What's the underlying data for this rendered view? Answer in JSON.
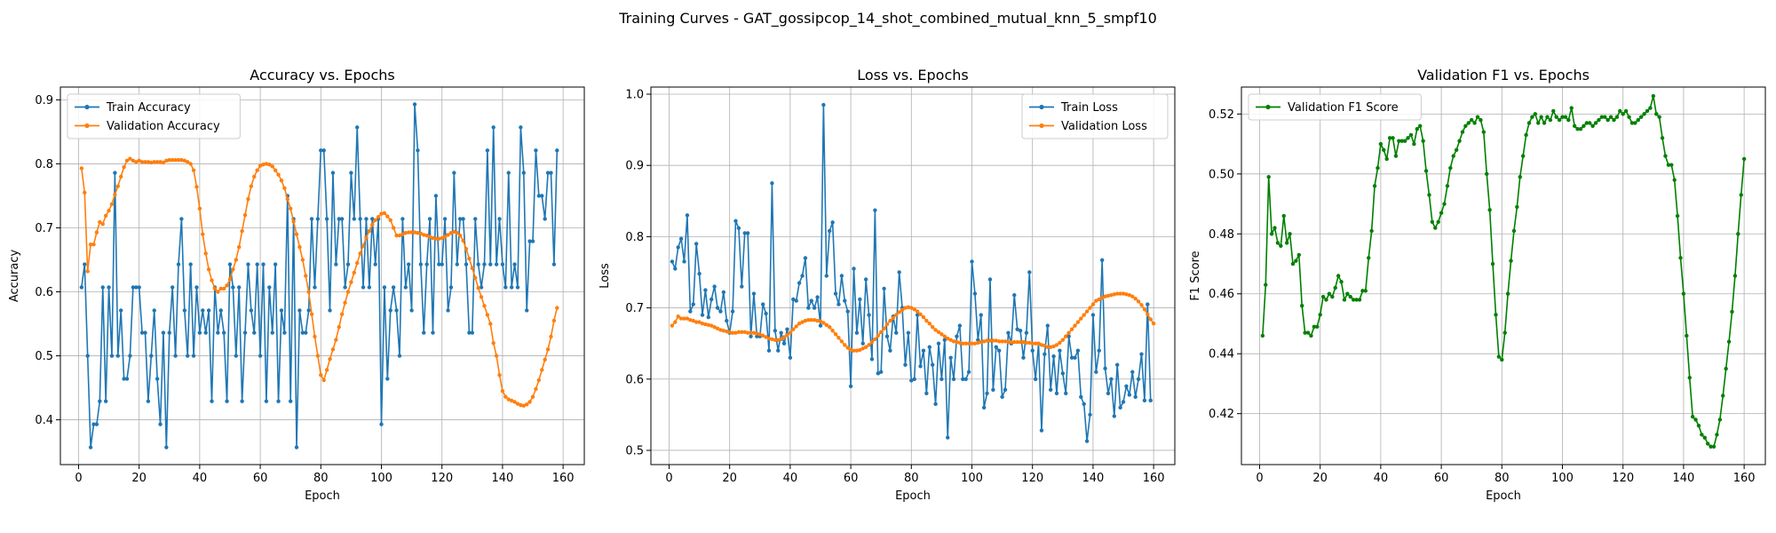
{
  "figure": {
    "suptitle": "Training Curves - GAT_gossipcop_14_shot_combined_mutual_knn_5_smpf10"
  },
  "chart_data": [
    {
      "type": "line",
      "title": "Accuracy vs. Epochs",
      "xlabel": "Epoch",
      "ylabel": "Accuracy",
      "xlim": [
        -6,
        167
      ],
      "ylim": [
        0.33,
        0.92
      ],
      "xticks": [
        0,
        20,
        40,
        60,
        80,
        100,
        120,
        140,
        160
      ],
      "yticks": [
        0.4,
        0.5,
        0.6,
        0.7,
        0.8,
        0.9
      ],
      "ytick_labels": [
        "0.4",
        "0.5",
        "0.6",
        "0.7",
        "0.8",
        "0.9"
      ],
      "grid": true,
      "legend": "upper-left",
      "series": [
        {
          "name": "Train Accuracy",
          "color": "#1f77b4",
          "x_start": 1,
          "values": [
            0.607,
            0.643,
            0.5,
            0.357,
            0.393,
            0.393,
            0.429,
            0.607,
            0.429,
            0.607,
            0.5,
            0.786,
            0.5,
            0.571,
            0.464,
            0.464,
            0.5,
            0.607,
            0.607,
            0.607,
            0.536,
            0.536,
            0.429,
            0.5,
            0.571,
            0.464,
            0.393,
            0.536,
            0.357,
            0.536,
            0.607,
            0.5,
            0.643,
            0.714,
            0.571,
            0.5,
            0.643,
            0.5,
            0.607,
            0.536,
            0.571,
            0.536,
            0.571,
            0.429,
            0.607,
            0.536,
            0.571,
            0.536,
            0.429,
            0.643,
            0.607,
            0.5,
            0.607,
            0.429,
            0.536,
            0.643,
            0.571,
            0.536,
            0.643,
            0.5,
            0.643,
            0.429,
            0.607,
            0.536,
            0.643,
            0.429,
            0.571,
            0.536,
            0.75,
            0.429,
            0.714,
            0.357,
            0.571,
            0.536,
            0.536,
            0.571,
            0.714,
            0.607,
            0.714,
            0.821,
            0.821,
            0.714,
            0.571,
            0.786,
            0.643,
            0.714,
            0.714,
            0.607,
            0.643,
            0.786,
            0.714,
            0.857,
            0.714,
            0.607,
            0.714,
            0.607,
            0.714,
            0.643,
            0.714,
            0.393,
            0.607,
            0.464,
            0.571,
            0.607,
            0.571,
            0.5,
            0.714,
            0.607,
            0.643,
            0.571,
            0.893,
            0.821,
            0.643,
            0.536,
            0.643,
            0.714,
            0.536,
            0.75,
            0.643,
            0.643,
            0.714,
            0.571,
            0.607,
            0.786,
            0.643,
            0.714,
            0.714,
            0.643,
            0.536,
            0.536,
            0.714,
            0.643,
            0.607,
            0.643,
            0.821,
            0.643,
            0.857,
            0.643,
            0.714,
            0.643,
            0.607,
            0.786,
            0.607,
            0.643,
            0.607,
            0.857,
            0.786,
            0.571,
            0.679,
            0.679,
            0.821,
            0.75,
            0.75,
            0.714,
            0.786,
            0.786,
            0.643,
            0.821
          ]
        },
        {
          "name": "Validation Accuracy",
          "color": "#ff7f0e",
          "x_start": 1,
          "values": [
            0.793,
            0.755,
            0.632,
            0.674,
            0.674,
            0.693,
            0.709,
            0.706,
            0.719,
            0.727,
            0.737,
            0.752,
            0.765,
            0.78,
            0.795,
            0.805,
            0.808,
            0.805,
            0.803,
            0.805,
            0.803,
            0.803,
            0.803,
            0.802,
            0.803,
            0.803,
            0.803,
            0.802,
            0.805,
            0.806,
            0.806,
            0.806,
            0.806,
            0.806,
            0.805,
            0.803,
            0.8,
            0.79,
            0.764,
            0.73,
            0.69,
            0.66,
            0.635,
            0.618,
            0.605,
            0.6,
            0.605,
            0.605,
            0.61,
            0.62,
            0.635,
            0.65,
            0.67,
            0.695,
            0.72,
            0.745,
            0.765,
            0.78,
            0.79,
            0.797,
            0.799,
            0.8,
            0.799,
            0.796,
            0.79,
            0.783,
            0.774,
            0.762,
            0.745,
            0.73,
            0.71,
            0.69,
            0.67,
            0.65,
            0.625,
            0.6,
            0.565,
            0.53,
            0.5,
            0.47,
            0.462,
            0.478,
            0.495,
            0.51,
            0.525,
            0.545,
            0.565,
            0.583,
            0.6,
            0.615,
            0.63,
            0.645,
            0.66,
            0.672,
            0.685,
            0.695,
            0.705,
            0.712,
            0.717,
            0.722,
            0.723,
            0.718,
            0.712,
            0.7,
            0.688,
            0.688,
            0.69,
            0.692,
            0.693,
            0.693,
            0.693,
            0.692,
            0.691,
            0.689,
            0.688,
            0.686,
            0.684,
            0.683,
            0.683,
            0.684,
            0.686,
            0.689,
            0.692,
            0.694,
            0.692,
            0.688,
            0.68,
            0.667,
            0.652,
            0.637,
            0.622,
            0.606,
            0.592,
            0.578,
            0.564,
            0.55,
            0.52,
            0.5,
            0.47,
            0.445,
            0.436,
            0.432,
            0.43,
            0.428,
            0.425,
            0.423,
            0.422,
            0.424,
            0.428,
            0.436,
            0.448,
            0.462,
            0.478,
            0.494,
            0.51,
            0.53,
            0.555,
            0.575
          ]
        }
      ]
    },
    {
      "type": "line",
      "title": "Loss vs. Epochs",
      "xlabel": "Epoch",
      "ylabel": "Loss",
      "xlim": [
        -6,
        167
      ],
      "ylim": [
        0.48,
        1.01
      ],
      "xticks": [
        0,
        20,
        40,
        60,
        80,
        100,
        120,
        140,
        160
      ],
      "yticks": [
        0.5,
        0.6,
        0.7,
        0.8,
        0.9,
        1.0
      ],
      "ytick_labels": [
        "0.5",
        "0.6",
        "0.7",
        "0.8",
        "0.9",
        "1.0"
      ],
      "grid": true,
      "legend": "upper-right",
      "series": [
        {
          "name": "Train Loss",
          "color": "#1f77b4",
          "x_start": 1,
          "values": [
            0.765,
            0.755,
            0.785,
            0.797,
            0.765,
            0.83,
            0.695,
            0.705,
            0.79,
            0.748,
            0.69,
            0.725,
            0.687,
            0.712,
            0.73,
            0.7,
            0.695,
            0.722,
            0.682,
            0.665,
            0.695,
            0.822,
            0.812,
            0.73,
            0.805,
            0.805,
            0.66,
            0.72,
            0.66,
            0.66,
            0.705,
            0.692,
            0.64,
            0.875,
            0.668,
            0.64,
            0.665,
            0.65,
            0.67,
            0.63,
            0.712,
            0.71,
            0.735,
            0.745,
            0.77,
            0.7,
            0.71,
            0.7,
            0.715,
            0.675,
            0.985,
            0.745,
            0.808,
            0.82,
            0.72,
            0.705,
            0.745,
            0.71,
            0.695,
            0.59,
            0.755,
            0.665,
            0.712,
            0.65,
            0.74,
            0.69,
            0.628,
            0.837,
            0.608,
            0.61,
            0.727,
            0.66,
            0.64,
            0.688,
            0.665,
            0.75,
            0.7,
            0.62,
            0.665,
            0.598,
            0.6,
            0.69,
            0.618,
            0.64,
            0.58,
            0.645,
            0.62,
            0.565,
            0.65,
            0.6,
            0.655,
            0.518,
            0.63,
            0.6,
            0.66,
            0.675,
            0.6,
            0.6,
            0.61,
            0.765,
            0.72,
            0.655,
            0.69,
            0.56,
            0.58,
            0.74,
            0.585,
            0.645,
            0.64,
            0.575,
            0.585,
            0.665,
            0.65,
            0.718,
            0.67,
            0.668,
            0.63,
            0.665,
            0.75,
            0.64,
            0.6,
            0.65,
            0.528,
            0.635,
            0.675,
            0.585,
            0.632,
            0.58,
            0.64,
            0.608,
            0.58,
            0.66,
            0.63,
            0.63,
            0.64,
            0.575,
            0.565,
            0.513,
            0.55,
            0.69,
            0.61,
            0.64,
            0.767,
            0.615,
            0.58,
            0.6,
            0.548,
            0.62,
            0.56,
            0.568,
            0.59,
            0.578,
            0.61,
            0.575,
            0.6,
            0.635,
            0.57,
            0.705,
            0.57
          ]
        },
        {
          "name": "Validation Loss",
          "color": "#ff7f0e",
          "x_start": 1,
          "values": [
            0.675,
            0.68,
            0.688,
            0.685,
            0.685,
            0.685,
            0.683,
            0.682,
            0.68,
            0.68,
            0.678,
            0.677,
            0.676,
            0.675,
            0.673,
            0.671,
            0.669,
            0.668,
            0.667,
            0.666,
            0.665,
            0.665,
            0.666,
            0.666,
            0.666,
            0.665,
            0.665,
            0.665,
            0.664,
            0.663,
            0.661,
            0.659,
            0.657,
            0.656,
            0.655,
            0.655,
            0.656,
            0.659,
            0.662,
            0.665,
            0.67,
            0.674,
            0.678,
            0.68,
            0.682,
            0.683,
            0.683,
            0.683,
            0.682,
            0.681,
            0.679,
            0.676,
            0.673,
            0.668,
            0.663,
            0.658,
            0.653,
            0.648,
            0.644,
            0.641,
            0.64,
            0.64,
            0.641,
            0.643,
            0.645,
            0.648,
            0.652,
            0.656,
            0.661,
            0.666,
            0.671,
            0.677,
            0.682,
            0.686,
            0.69,
            0.694,
            0.697,
            0.7,
            0.701,
            0.7,
            0.698,
            0.695,
            0.691,
            0.687,
            0.682,
            0.678,
            0.673,
            0.669,
            0.666,
            0.663,
            0.66,
            0.657,
            0.655,
            0.653,
            0.652,
            0.651,
            0.65,
            0.65,
            0.65,
            0.65,
            0.65,
            0.651,
            0.652,
            0.653,
            0.654,
            0.654,
            0.654,
            0.654,
            0.653,
            0.653,
            0.653,
            0.652,
            0.652,
            0.652,
            0.652,
            0.652,
            0.652,
            0.651,
            0.651,
            0.65,
            0.65,
            0.65,
            0.648,
            0.647,
            0.645,
            0.645,
            0.646,
            0.648,
            0.651,
            0.655,
            0.66,
            0.665,
            0.67,
            0.675,
            0.68,
            0.685,
            0.69,
            0.695,
            0.7,
            0.705,
            0.71,
            0.712,
            0.714,
            0.716,
            0.717,
            0.718,
            0.719,
            0.72,
            0.72,
            0.72,
            0.719,
            0.718,
            0.716,
            0.713,
            0.709,
            0.704,
            0.698,
            0.691,
            0.684,
            0.678
          ]
        }
      ]
    },
    {
      "type": "line",
      "title": "Validation F1 vs. Epochs",
      "xlabel": "Epoch",
      "ylabel": "F1 Score",
      "xlim": [
        -6,
        167
      ],
      "ylim": [
        0.403,
        0.529
      ],
      "xticks": [
        0,
        20,
        40,
        60,
        80,
        100,
        120,
        140,
        160
      ],
      "yticks": [
        0.42,
        0.44,
        0.46,
        0.48,
        0.5,
        0.52
      ],
      "ytick_labels": [
        "0.42",
        "0.44",
        "0.46",
        "0.48",
        "0.50",
        "0.52"
      ],
      "grid": true,
      "legend": "upper-left",
      "series": [
        {
          "name": "Validation F1 Score",
          "color": "#008000",
          "x_start": 1,
          "values": [
            0.446,
            0.463,
            0.499,
            0.48,
            0.482,
            0.477,
            0.476,
            0.486,
            0.477,
            0.48,
            0.47,
            0.471,
            0.473,
            0.456,
            0.447,
            0.447,
            0.446,
            0.449,
            0.449,
            0.453,
            0.459,
            0.458,
            0.46,
            0.459,
            0.462,
            0.466,
            0.464,
            0.458,
            0.46,
            0.459,
            0.458,
            0.458,
            0.458,
            0.461,
            0.461,
            0.472,
            0.481,
            0.496,
            0.502,
            0.51,
            0.508,
            0.505,
            0.512,
            0.512,
            0.506,
            0.511,
            0.511,
            0.511,
            0.512,
            0.513,
            0.51,
            0.515,
            0.516,
            0.511,
            0.501,
            0.493,
            0.484,
            0.482,
            0.484,
            0.487,
            0.49,
            0.496,
            0.502,
            0.506,
            0.508,
            0.511,
            0.514,
            0.516,
            0.517,
            0.518,
            0.517,
            0.519,
            0.518,
            0.514,
            0.5,
            0.488,
            0.47,
            0.453,
            0.439,
            0.438,
            0.447,
            0.46,
            0.471,
            0.481,
            0.489,
            0.499,
            0.506,
            0.513,
            0.517,
            0.519,
            0.52,
            0.517,
            0.519,
            0.517,
            0.519,
            0.518,
            0.521,
            0.519,
            0.518,
            0.519,
            0.519,
            0.518,
            0.522,
            0.516,
            0.515,
            0.515,
            0.516,
            0.517,
            0.517,
            0.516,
            0.517,
            0.518,
            0.519,
            0.519,
            0.518,
            0.519,
            0.518,
            0.519,
            0.521,
            0.52,
            0.521,
            0.519,
            0.517,
            0.517,
            0.518,
            0.519,
            0.52,
            0.521,
            0.522,
            0.526,
            0.52,
            0.519,
            0.512,
            0.506,
            0.503,
            0.503,
            0.498,
            0.486,
            0.472,
            0.46,
            0.446,
            0.432,
            0.419,
            0.418,
            0.416,
            0.413,
            0.412,
            0.41,
            0.409,
            0.409,
            0.413,
            0.418,
            0.426,
            0.435,
            0.444,
            0.454,
            0.466,
            0.48,
            0.493,
            0.505
          ]
        }
      ]
    }
  ]
}
